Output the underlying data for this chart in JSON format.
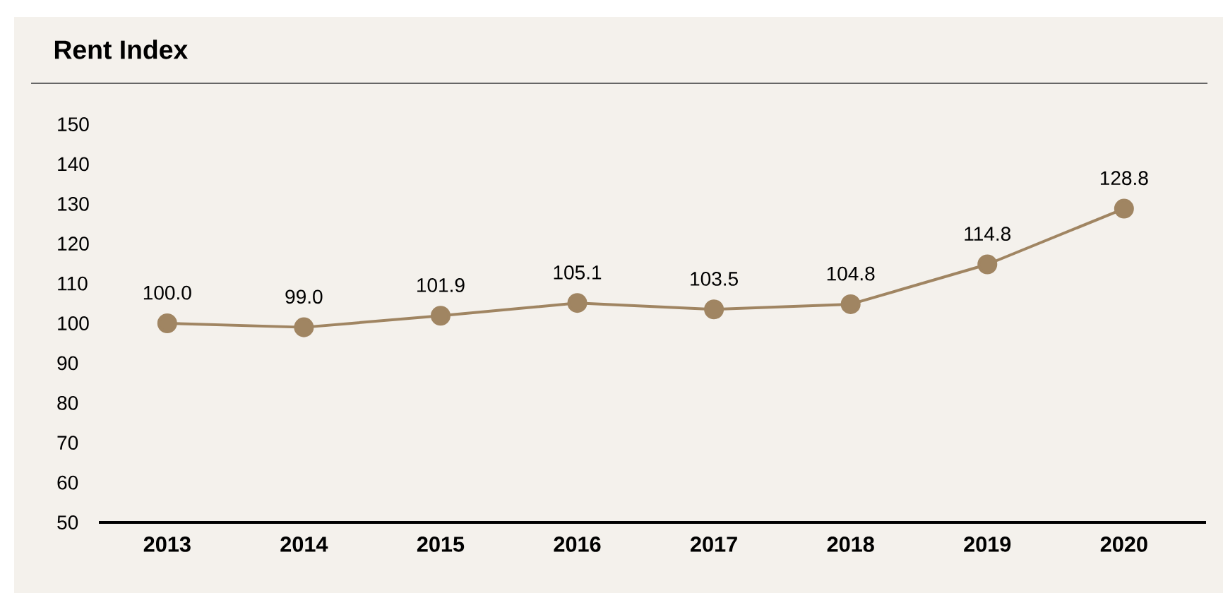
{
  "chart_data": {
    "type": "line",
    "title": "Rent Index",
    "categories": [
      "2013",
      "2014",
      "2015",
      "2016",
      "2017",
      "2018",
      "2019",
      "2020"
    ],
    "values": [
      100.0,
      99.0,
      101.9,
      105.1,
      103.5,
      104.8,
      114.8,
      128.8
    ],
    "value_labels": [
      "100.0",
      "99.0",
      "101.9",
      "105.1",
      "103.5",
      "104.8",
      "114.8",
      "128.8"
    ],
    "color": "#a08562",
    "marker": "circle",
    "line_style": "solid",
    "ylim": [
      50,
      150
    ],
    "yticks": [
      50,
      60,
      70,
      80,
      90,
      100,
      110,
      120,
      130,
      140,
      150
    ],
    "grid": false
  }
}
